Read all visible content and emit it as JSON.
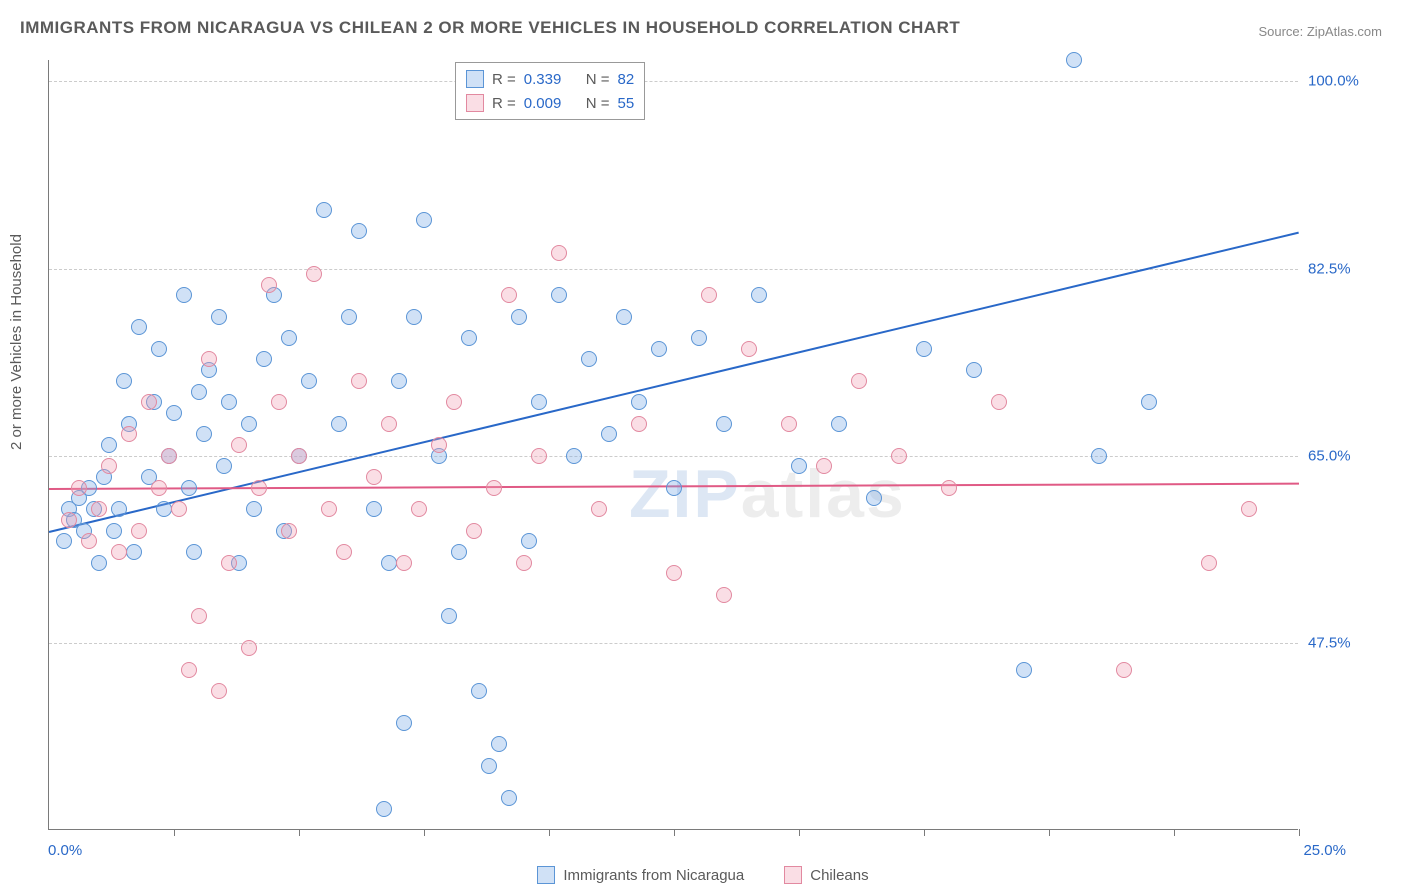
{
  "title": "IMMIGRANTS FROM NICARAGUA VS CHILEAN 2 OR MORE VEHICLES IN HOUSEHOLD CORRELATION CHART",
  "source": {
    "label": "Source: ",
    "value": "ZipAtlas.com"
  },
  "ylabel": "2 or more Vehicles in Household",
  "watermark": {
    "prefix": "ZIP",
    "suffix": "atlas"
  },
  "chart": {
    "type": "scatter",
    "xlim": [
      0,
      25
    ],
    "ylim": [
      30,
      102
    ],
    "yticks": [
      {
        "v": 47.5,
        "label": "47.5%"
      },
      {
        "v": 65.0,
        "label": "65.0%"
      },
      {
        "v": 82.5,
        "label": "82.5%"
      },
      {
        "v": 100.0,
        "label": "100.0%"
      }
    ],
    "xticks_pct": [
      10,
      20,
      30,
      40,
      50,
      60,
      70,
      80,
      90,
      100
    ],
    "xlabels": {
      "min": "0.0%",
      "max": "25.0%"
    },
    "xlabel_color": "#2968c8",
    "ytick_color": "#2968c8",
    "grid_color": "#cccccc",
    "background_color": "#ffffff",
    "axis_color": "#7a7a7a",
    "marker_radius": 8,
    "marker_stroke_width": 1.5,
    "series": [
      {
        "name": "Immigrants from Nicaragua",
        "fill": "rgba(120,170,230,0.35)",
        "stroke": "#5b95d6",
        "R": "0.339",
        "N": "82",
        "trend": {
          "x1": 0,
          "y1": 58,
          "x2": 25,
          "y2": 86,
          "color": "#2968c8",
          "width": 2
        },
        "points": [
          [
            0.3,
            57
          ],
          [
            0.4,
            60
          ],
          [
            0.5,
            59
          ],
          [
            0.6,
            61
          ],
          [
            0.7,
            58
          ],
          [
            0.8,
            62
          ],
          [
            0.9,
            60
          ],
          [
            1.0,
            55
          ],
          [
            1.1,
            63
          ],
          [
            1.2,
            66
          ],
          [
            1.3,
            58
          ],
          [
            1.4,
            60
          ],
          [
            1.5,
            72
          ],
          [
            1.6,
            68
          ],
          [
            1.7,
            56
          ],
          [
            1.8,
            77
          ],
          [
            2.0,
            63
          ],
          [
            2.1,
            70
          ],
          [
            2.2,
            75
          ],
          [
            2.3,
            60
          ],
          [
            2.4,
            65
          ],
          [
            2.5,
            69
          ],
          [
            2.7,
            80
          ],
          [
            2.8,
            62
          ],
          [
            2.9,
            56
          ],
          [
            3.0,
            71
          ],
          [
            3.1,
            67
          ],
          [
            3.2,
            73
          ],
          [
            3.4,
            78
          ],
          [
            3.5,
            64
          ],
          [
            3.6,
            70
          ],
          [
            3.8,
            55
          ],
          [
            4.0,
            68
          ],
          [
            4.1,
            60
          ],
          [
            4.3,
            74
          ],
          [
            4.5,
            80
          ],
          [
            4.7,
            58
          ],
          [
            4.8,
            76
          ],
          [
            5.0,
            65
          ],
          [
            5.2,
            72
          ],
          [
            5.5,
            88
          ],
          [
            5.8,
            68
          ],
          [
            6.0,
            78
          ],
          [
            6.2,
            86
          ],
          [
            6.5,
            60
          ],
          [
            6.7,
            32
          ],
          [
            6.8,
            55
          ],
          [
            7.0,
            72
          ],
          [
            7.1,
            40
          ],
          [
            7.3,
            78
          ],
          [
            7.5,
            87
          ],
          [
            7.8,
            65
          ],
          [
            8.0,
            50
          ],
          [
            8.2,
            56
          ],
          [
            8.4,
            76
          ],
          [
            8.6,
            43
          ],
          [
            8.8,
            36
          ],
          [
            9.0,
            38
          ],
          [
            9.2,
            33
          ],
          [
            9.4,
            78
          ],
          [
            9.6,
            57
          ],
          [
            9.8,
            70
          ],
          [
            10.2,
            80
          ],
          [
            10.5,
            65
          ],
          [
            10.8,
            74
          ],
          [
            11.2,
            67
          ],
          [
            11.5,
            78
          ],
          [
            11.8,
            70
          ],
          [
            12.2,
            75
          ],
          [
            12.5,
            62
          ],
          [
            13.0,
            76
          ],
          [
            13.5,
            68
          ],
          [
            14.2,
            80
          ],
          [
            15.0,
            64
          ],
          [
            15.8,
            68
          ],
          [
            16.5,
            61
          ],
          [
            17.5,
            75
          ],
          [
            18.5,
            73
          ],
          [
            19.5,
            45
          ],
          [
            20.5,
            102
          ],
          [
            21.0,
            65
          ],
          [
            22.0,
            70
          ]
        ]
      },
      {
        "name": "Chileans",
        "fill": "rgba(240,160,180,0.35)",
        "stroke": "#e289a0",
        "R": "0.009",
        "N": "55",
        "trend": {
          "x1": 0,
          "y1": 62,
          "x2": 25,
          "y2": 62.5,
          "color": "#e05a85",
          "width": 2
        },
        "points": [
          [
            0.4,
            59
          ],
          [
            0.6,
            62
          ],
          [
            0.8,
            57
          ],
          [
            1.0,
            60
          ],
          [
            1.2,
            64
          ],
          [
            1.4,
            56
          ],
          [
            1.6,
            67
          ],
          [
            1.8,
            58
          ],
          [
            2.0,
            70
          ],
          [
            2.2,
            62
          ],
          [
            2.4,
            65
          ],
          [
            2.6,
            60
          ],
          [
            2.8,
            45
          ],
          [
            3.0,
            50
          ],
          [
            3.2,
            74
          ],
          [
            3.4,
            43
          ],
          [
            3.6,
            55
          ],
          [
            3.8,
            66
          ],
          [
            4.0,
            47
          ],
          [
            4.2,
            62
          ],
          [
            4.4,
            81
          ],
          [
            4.6,
            70
          ],
          [
            4.8,
            58
          ],
          [
            5.0,
            65
          ],
          [
            5.3,
            82
          ],
          [
            5.6,
            60
          ],
          [
            5.9,
            56
          ],
          [
            6.2,
            72
          ],
          [
            6.5,
            63
          ],
          [
            6.8,
            68
          ],
          [
            7.1,
            55
          ],
          [
            7.4,
            60
          ],
          [
            7.8,
            66
          ],
          [
            8.1,
            70
          ],
          [
            8.5,
            58
          ],
          [
            8.9,
            62
          ],
          [
            9.2,
            80
          ],
          [
            9.5,
            55
          ],
          [
            9.8,
            65
          ],
          [
            10.2,
            84
          ],
          [
            11.0,
            60
          ],
          [
            11.8,
            68
          ],
          [
            12.5,
            54
          ],
          [
            13.2,
            80
          ],
          [
            13.5,
            52
          ],
          [
            14.0,
            75
          ],
          [
            14.8,
            68
          ],
          [
            15.5,
            64
          ],
          [
            16.2,
            72
          ],
          [
            17.0,
            65
          ],
          [
            18.0,
            62
          ],
          [
            19.0,
            70
          ],
          [
            21.5,
            45
          ],
          [
            23.2,
            55
          ],
          [
            24.0,
            60
          ]
        ]
      }
    ]
  },
  "legend": {
    "r_label": "R =",
    "n_label": "N =",
    "stat_color": "#5a5a5a",
    "value_color": "#2968c8"
  }
}
